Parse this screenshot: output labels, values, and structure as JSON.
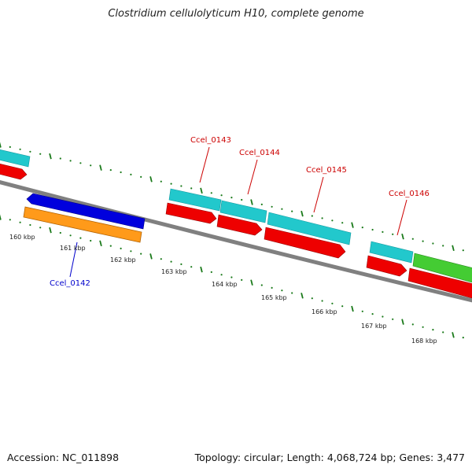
{
  "title": "Clostridium cellulolyticum H10, complete genome",
  "footer": {
    "accession": "Accession: NC_011898",
    "summary": "Topology: circular; Length: 4,068,724 bp; Genes: 3,477"
  },
  "scale_labels": [
    "160 kbp",
    "161 kbp",
    "162 kbp",
    "163 kbp",
    "164 kbp",
    "165 kbp",
    "166 kbp",
    "167 kbp",
    "168 kbp"
  ],
  "gene_labels": {
    "ccel_0142": "Ccel_0142",
    "ccel_0143": "Ccel_0143",
    "ccel_0144": "Ccel_0144",
    "ccel_0145": "Ccel_0145",
    "ccel_0146": "Ccel_0146"
  },
  "colors": {
    "backbone": "#808080",
    "tick": "#1a7a1a",
    "forward_cds": "#ee0000",
    "forward_feature": "#22c8cc",
    "reverse_cds": "#ff9a1a",
    "reverse_feature": "#0000dd",
    "green_feature": "#44cc33",
    "label_red": "#cc0000",
    "label_blue": "#0000cc"
  }
}
